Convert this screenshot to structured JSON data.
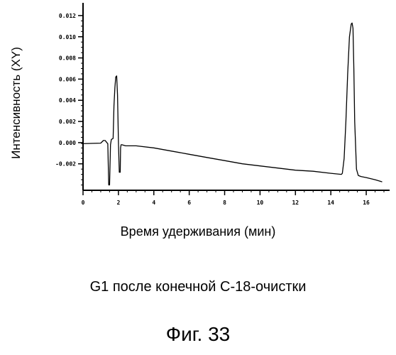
{
  "chart_data": {
    "type": "line",
    "title": "",
    "xlabel": "Время удерживания (мин)",
    "ylabel": "Интенсивность (XY)",
    "xlim": [
      0,
      17
    ],
    "ylim": [
      -0.0045,
      0.0128
    ],
    "x_ticks": [
      "0",
      "2",
      "4",
      "6",
      "8",
      "10",
      "12",
      "14",
      "16"
    ],
    "y_ticks": [
      "0.012",
      "0.010",
      "0.008",
      "0.006",
      "0.004",
      "0.002",
      "0.000",
      "-0.002"
    ],
    "grid": false,
    "series": [
      {
        "name": "",
        "x": [
          -0.1,
          1.0,
          1.15,
          1.25,
          1.4,
          1.45,
          1.5,
          1.55,
          1.6,
          1.7,
          1.75,
          1.8,
          1.85,
          1.9,
          1.95,
          2.0,
          2.05,
          2.1,
          2.12,
          2.15,
          2.2,
          2.4,
          3.0,
          4.0,
          5.0,
          6.0,
          7.0,
          8.0,
          9.0,
          10.0,
          11.0,
          12.0,
          13.0,
          14.0,
          14.6,
          14.65,
          14.75,
          14.85,
          14.95,
          15.05,
          15.15,
          15.2,
          15.25,
          15.3,
          15.35,
          15.45,
          15.55,
          15.7,
          16.0,
          16.5,
          16.9
        ],
        "y": [
          -0.0001,
          -5e-05,
          0.0002,
          0.0002,
          -0.0001,
          -0.004,
          -0.004,
          -0.0002,
          0.0003,
          0.0004,
          0.0035,
          0.0052,
          0.0062,
          0.0063,
          0.0045,
          0.0,
          -0.0028,
          -0.0028,
          -0.0005,
          -0.0002,
          -0.0002,
          -0.0003,
          -0.0003,
          -0.0005,
          -0.0008,
          -0.0011,
          -0.0014,
          -0.0017,
          -0.002,
          -0.0022,
          -0.0024,
          -0.0026,
          -0.0027,
          -0.0029,
          -0.003,
          -0.0029,
          -0.0015,
          0.002,
          0.0065,
          0.01,
          0.0112,
          0.0113,
          0.0108,
          0.007,
          0.002,
          -0.0025,
          -0.0031,
          -0.0032,
          -0.0033,
          -0.0035,
          -0.0037
        ]
      }
    ]
  },
  "caption": "G1 после конечной С-18-очистки",
  "figure_label": "Фиг. 33"
}
